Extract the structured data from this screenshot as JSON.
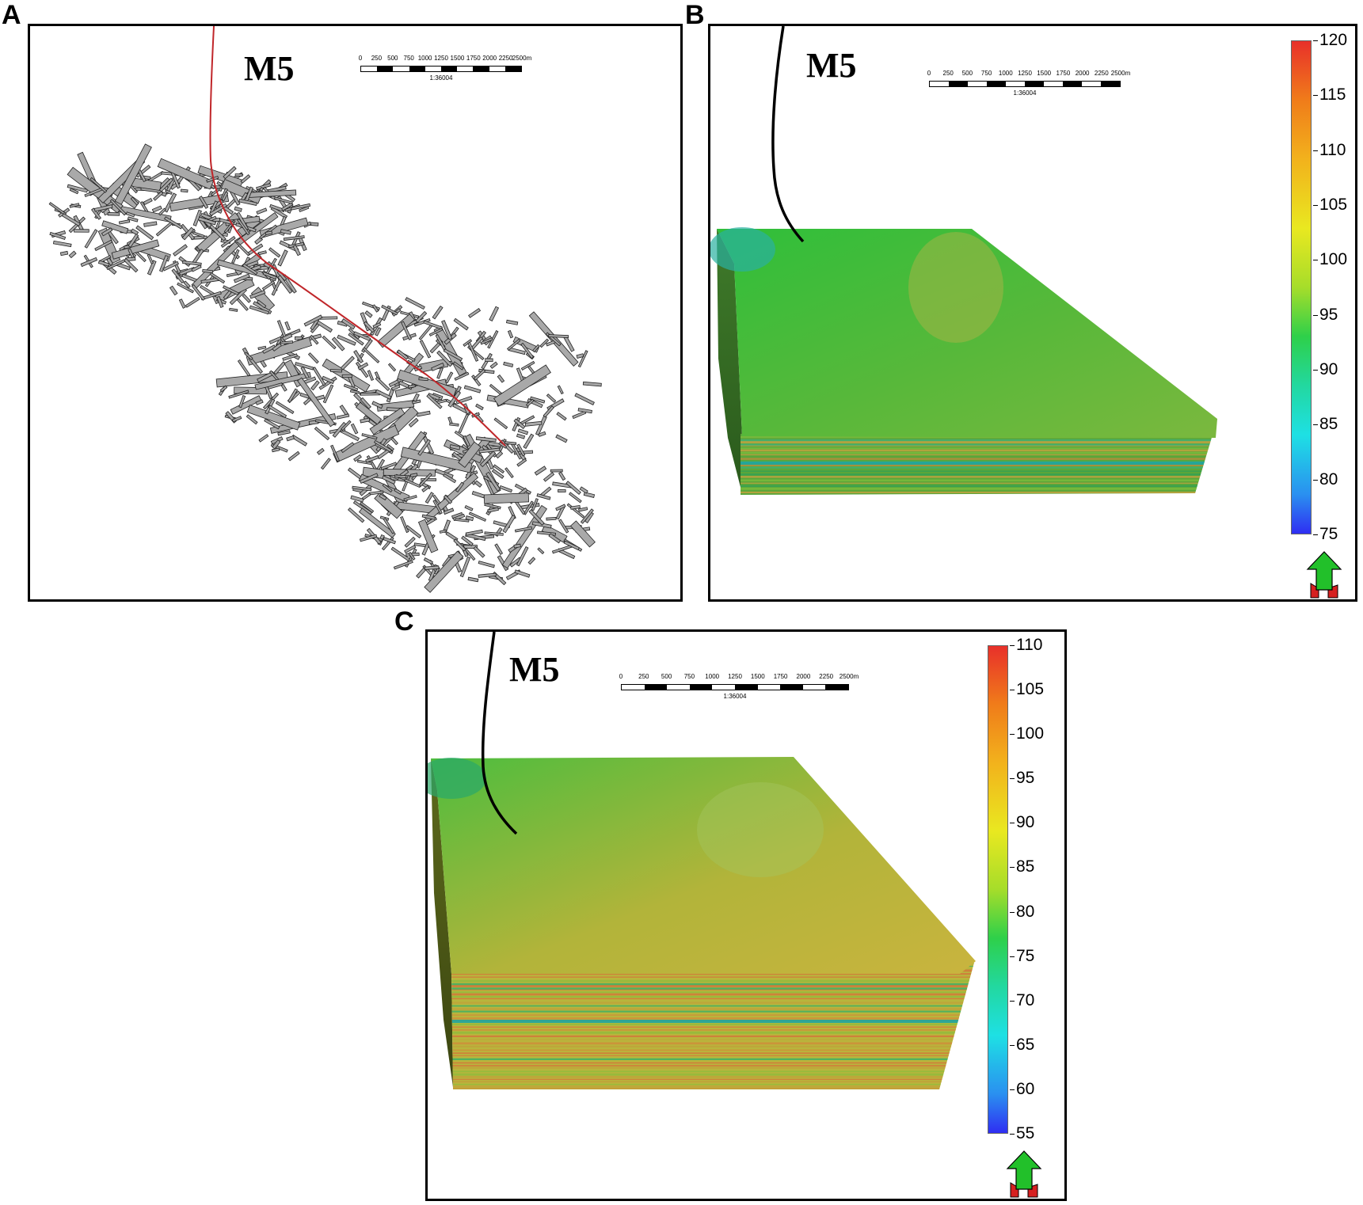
{
  "panels": {
    "a": {
      "label": "A",
      "well_name": "M5"
    },
    "b": {
      "label": "B",
      "well_name": "M5"
    },
    "c": {
      "label": "C",
      "well_name": "M5"
    }
  },
  "scale_bar": {
    "ticks": [
      "0",
      "250",
      "500",
      "750",
      "1000",
      "1250",
      "1500",
      "1750",
      "2000",
      "2250",
      "2500m"
    ],
    "ratio": "1:36004"
  },
  "colorbar_b": {
    "ticks": [
      "120",
      "115",
      "110",
      "105",
      "100",
      "95",
      "90",
      "85",
      "80",
      "75"
    ],
    "min": 75,
    "max": 120
  },
  "colorbar_c": {
    "ticks": [
      "110",
      "105",
      "100",
      "95",
      "90",
      "85",
      "80",
      "75",
      "70",
      "65",
      "60",
      "55"
    ],
    "min": 55,
    "max": 110
  },
  "icons": {
    "north_arrow": "north-arrow-icon"
  },
  "colors": {
    "well_a": "#c0262a",
    "well_bc": "#000000",
    "fracture_fill": "#a9a9a9"
  }
}
